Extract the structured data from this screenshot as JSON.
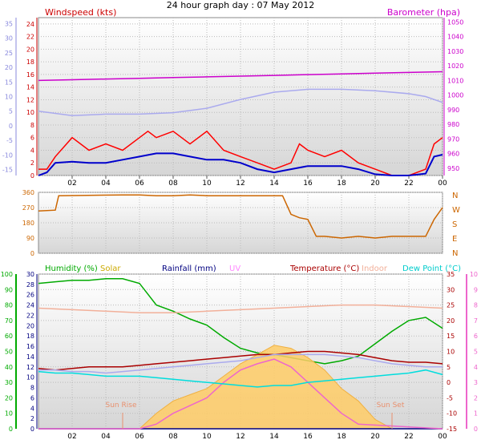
{
  "chart_data": [
    {
      "type": "line",
      "title": "24 hour graph day : 07 May 2012",
      "ylabel_left": "Windspeed (kts)",
      "ylabel_right": "Barometer (hpa)",
      "x_ticks": [
        "02",
        "04",
        "06",
        "08",
        "10",
        "12",
        "14",
        "16",
        "18",
        "20",
        "22",
        "00"
      ],
      "xlim_hours": [
        0,
        24
      ],
      "y_left_ticks": [
        0,
        2,
        4,
        6,
        8,
        10,
        12,
        14,
        16,
        18,
        20,
        22,
        24
      ],
      "ylim_left": [
        0,
        25
      ],
      "y_outer_left_ticks": [
        -15,
        -10,
        -5,
        0,
        5,
        10,
        15,
        20,
        25,
        30,
        35
      ],
      "ylim_outer_left": [
        -17,
        37
      ],
      "y_right_ticks": [
        950,
        960,
        970,
        980,
        990,
        1000,
        1010,
        1020,
        1030,
        1040,
        1050
      ],
      "ylim_right": [
        945,
        1053
      ],
      "grid": true,
      "series": [
        {
          "name": "Barometer (hpa)",
          "axis": "right",
          "color": "#cc00cc",
          "x": [
            0,
            2,
            4,
            6,
            8,
            10,
            12,
            14,
            16,
            18,
            20,
            22,
            24
          ],
          "y": [
            1010,
            1010.5,
            1011,
            1011.5,
            1012,
            1012.5,
            1013,
            1013.5,
            1014,
            1014.5,
            1015,
            1015.5,
            1016
          ]
        },
        {
          "axis": "outer_left",
          "color": "#aaaaee",
          "x": [
            0,
            2,
            4,
            6,
            8,
            10,
            12,
            14,
            16,
            18,
            20,
            22,
            23,
            24
          ],
          "y": [
            5,
            3.5,
            4,
            4,
            4.5,
            6,
            9,
            11.5,
            12.5,
            12.5,
            12,
            11,
            10,
            8
          ]
        },
        {
          "axis": "left",
          "color": "#ff0000",
          "x": [
            0,
            0.5,
            1,
            2,
            3,
            4,
            5,
            6,
            6.5,
            7,
            8,
            9,
            10,
            11,
            12,
            13,
            14,
            15,
            15.5,
            16,
            17,
            18,
            19,
            20,
            21,
            22,
            23,
            23.5,
            24
          ],
          "y": [
            1,
            1,
            3,
            6,
            4,
            5,
            4,
            6,
            7,
            6,
            7,
            5,
            7,
            4,
            3,
            2,
            1,
            2,
            5,
            4,
            3,
            4,
            2,
            1,
            0,
            0,
            1,
            5,
            6
          ]
        },
        {
          "axis": "left",
          "color": "#0000cc",
          "x": [
            0,
            0.5,
            1,
            2,
            3,
            4,
            5,
            6,
            7,
            8,
            9,
            10,
            11,
            12,
            13,
            14,
            15,
            16,
            17,
            18,
            19,
            20,
            21,
            22,
            23,
            23.5,
            24
          ],
          "y": [
            0,
            0.5,
            2,
            2.2,
            2,
            2,
            2.5,
            3,
            3.5,
            3.5,
            3,
            2.5,
            2.5,
            2,
            1,
            0.5,
            1,
            1.5,
            1.5,
            1.5,
            1,
            0.2,
            0,
            0,
            0.3,
            3,
            3.3
          ]
        }
      ]
    },
    {
      "type": "line",
      "ylabel_right": "N W S E N",
      "right_labels": [
        "N",
        "W",
        "S",
        "E",
        "N"
      ],
      "y_ticks": [
        0,
        90,
        180,
        270,
        360
      ],
      "ylim": [
        0,
        360
      ],
      "xlim_hours": [
        0,
        24
      ],
      "grid": true,
      "series": [
        {
          "axis": "left",
          "color": "#cc6600",
          "x": [
            0,
            1,
            1.2,
            5,
            6,
            7,
            8,
            9,
            10,
            11,
            12,
            13,
            14,
            14.5,
            15,
            15.5,
            16,
            16.5,
            17,
            18,
            19,
            20,
            21,
            22,
            23,
            23.5,
            24
          ],
          "y": [
            250,
            255,
            340,
            345,
            345,
            340,
            340,
            345,
            340,
            340,
            340,
            340,
            340,
            340,
            230,
            210,
            200,
            100,
            100,
            90,
            100,
            90,
            100,
            100,
            100,
            200,
            270
          ]
        }
      ]
    },
    {
      "type": "line",
      "legend": [
        "Humidity (%)",
        "Solar",
        "Rainfall (mm)",
        "UV",
        "Temperature (°C)",
        "Indoor",
        "Dew Point (°C)"
      ],
      "annotations": [
        "Sun Rise",
        "Sun Set"
      ],
      "sunrise_hour": 5,
      "sunset_hour": 21,
      "y_humidity_ticks": [
        0,
        10,
        20,
        30,
        40,
        50,
        60,
        70,
        80,
        90,
        100
      ],
      "ylim_humidity": [
        0,
        100
      ],
      "y_rain_ticks": [
        0,
        2,
        4,
        6,
        8,
        10,
        12,
        14,
        16,
        18,
        20,
        22,
        24,
        26,
        28,
        30
      ],
      "ylim_rain": [
        0,
        30
      ],
      "y_temp_ticks": [
        -15,
        -10,
        -5,
        0,
        5,
        10,
        15,
        20,
        25,
        30,
        35
      ],
      "ylim_temp": [
        -15,
        35
      ],
      "y_uv_ticks": [
        0,
        1,
        2,
        3,
        4,
        5,
        6,
        7,
        8,
        9,
        10
      ],
      "ylim_uv": [
        0,
        10
      ],
      "xlim_hours": [
        0,
        24
      ],
      "grid": true,
      "series": [
        {
          "name": "Humidity (%)",
          "axis": "humidity",
          "color": "#00aa00",
          "x": [
            0,
            1,
            2,
            3,
            4,
            5,
            6,
            6.5,
            7,
            8,
            9,
            10,
            11,
            12,
            13,
            14,
            15,
            16,
            17,
            18,
            19,
            20,
            21,
            22,
            23,
            24
          ],
          "y": [
            94,
            95,
            96,
            96,
            97,
            97,
            94,
            87,
            80,
            76,
            71,
            67,
            59,
            52,
            49,
            48,
            46,
            44,
            42,
            44,
            47,
            55,
            63,
            70,
            72,
            65
          ]
        },
        {
          "name": "Solar",
          "axis": "temp",
          "color": "#ffcc66",
          "x": [
            0,
            5,
            6,
            7,
            8,
            9,
            10,
            11,
            12,
            13,
            14,
            15,
            16,
            17,
            18,
            19,
            20,
            21,
            24
          ],
          "y": [
            -15,
            -15,
            -15,
            -10,
            -6,
            -4,
            -2,
            2,
            6,
            9,
            12,
            11,
            8,
            4,
            -2,
            -6,
            -12,
            -15,
            -15
          ]
        },
        {
          "name": "Rainfall (mm)",
          "axis": "rain",
          "color": "#000080",
          "x": [
            0,
            24
          ],
          "y": [
            0,
            0
          ]
        },
        {
          "name": "UV",
          "axis": "uv",
          "color": "#ee66cc",
          "x": [
            0,
            6,
            7,
            8,
            9,
            10,
            11,
            12,
            13,
            14,
            15,
            16,
            17,
            18,
            19,
            24
          ],
          "y": [
            0,
            0,
            0.3,
            1,
            1.5,
            2,
            3,
            3.8,
            4.2,
            4.5,
            4,
            3,
            2,
            1,
            0.3,
            0
          ]
        },
        {
          "name": "Temperature (°C)",
          "axis": "temp",
          "color": "#aa0000",
          "x": [
            0,
            1,
            2,
            3,
            4,
            5,
            6,
            7,
            8,
            9,
            10,
            11,
            12,
            13,
            14,
            15,
            16,
            17,
            18,
            19,
            20,
            21,
            22,
            23,
            24
          ],
          "y": [
            4.5,
            4,
            4.5,
            5,
            5,
            5,
            5.5,
            6,
            6.5,
            7,
            7.5,
            8,
            8.5,
            9,
            9,
            9.5,
            10,
            10,
            9.5,
            9,
            8,
            7,
            6.5,
            6.5,
            6
          ]
        },
        {
          "name": "Indoor",
          "axis": "temp",
          "color": "#f2b09a",
          "x": [
            0,
            2,
            4,
            6,
            8,
            10,
            12,
            14,
            16,
            18,
            20,
            22,
            24
          ],
          "y": [
            24,
            23.5,
            23,
            22.5,
            22.5,
            23,
            23.5,
            24,
            24.5,
            25,
            25,
            24.5,
            24
          ]
        },
        {
          "axis": "temp",
          "color": "#aaaaee",
          "x": [
            0,
            1,
            2,
            3,
            4,
            5,
            6,
            7,
            8,
            9,
            10,
            11,
            12,
            13,
            14,
            15,
            16,
            17,
            18,
            19,
            20,
            21,
            22,
            23,
            24
          ],
          "y": [
            4,
            4,
            3.5,
            3.5,
            3,
            3.5,
            4,
            4.5,
            5,
            5.5,
            6,
            6.5,
            7,
            8,
            9,
            9,
            9,
            9,
            8.5,
            8,
            7,
            6,
            5.5,
            5,
            5
          ]
        },
        {
          "name": "Dew Point (°C)",
          "axis": "temp",
          "color": "#00dddd",
          "x": [
            0,
            1,
            2,
            3,
            4,
            5,
            6,
            7,
            8,
            9,
            10,
            11,
            12,
            13,
            14,
            15,
            16,
            17,
            18,
            19,
            20,
            21,
            22,
            23,
            24
          ],
          "y": [
            3.5,
            3,
            3,
            2.5,
            2,
            2,
            2,
            1.5,
            1,
            0.5,
            0,
            -0.5,
            -1,
            -1.5,
            -1,
            -1,
            0,
            0.5,
            1,
            1.5,
            2,
            2.5,
            3,
            4,
            2.5
          ]
        }
      ]
    }
  ],
  "colors": {
    "barometer": "#cc00cc",
    "wind_label": "#cc0000",
    "outer_left_axis": "#8888dd",
    "direction": "#cc6600",
    "humidity": "#00aa00",
    "rain_axis": "#000080",
    "temp_axis": "#aa0000",
    "uv_axis": "#ee66cc",
    "dew_point": "#00cccc",
    "indoor": "#f2b09a",
    "solar_label": "#ccaa00",
    "uv_label": "#ff88ff",
    "plot_bg_top": "#ffffff",
    "plot_bg_bottom": "#d8d8d8"
  }
}
